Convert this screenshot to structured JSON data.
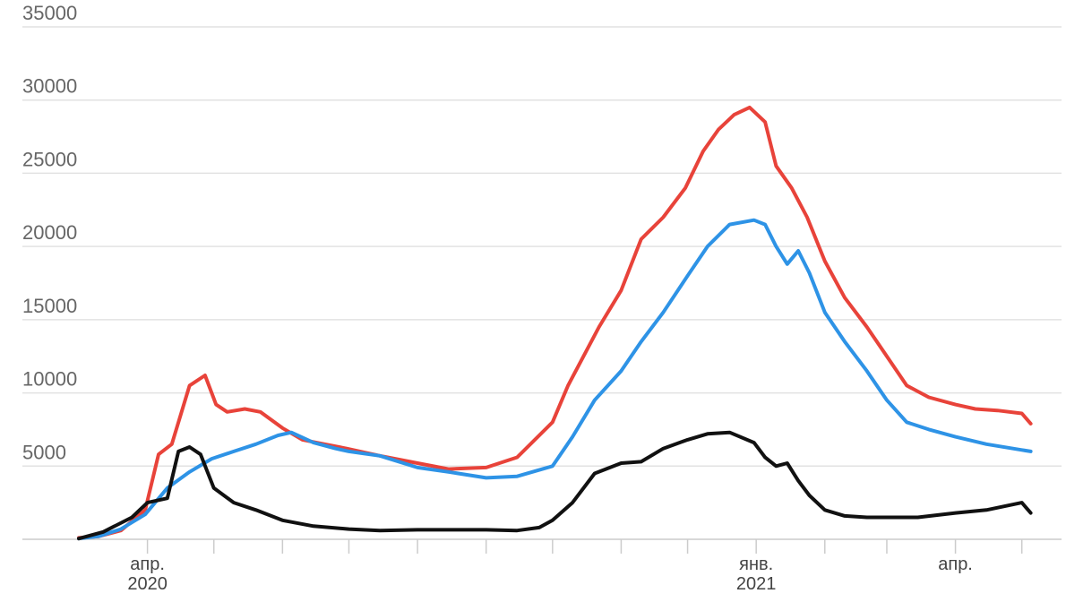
{
  "chart_data": {
    "type": "line",
    "title": "",
    "xlabel": "",
    "ylabel": "",
    "ylim": [
      0,
      35000
    ],
    "y_ticks": [
      "35000",
      "30000",
      "25000",
      "20000",
      "15000",
      "10000",
      "5000"
    ],
    "y_tick_values": [
      35000,
      30000,
      25000,
      20000,
      15000,
      10000,
      5000
    ],
    "x_tick_labels": [
      {
        "date": "2020-04-01",
        "line1": "апр.",
        "line2": "2020"
      },
      {
        "date": "2021-01-01",
        "line1": "янв.",
        "line2": "2021"
      },
      {
        "date": "2021-04-01",
        "line1": "апр.",
        "line2": ""
      }
    ],
    "x_minor_ticks": [
      "2020-05-01",
      "2020-06-01",
      "2020-07-01",
      "2020-08-01",
      "2020-09-01",
      "2020-10-01",
      "2020-11-01",
      "2020-12-01",
      "2021-02-01",
      "2021-03-01",
      "2021-05-01"
    ],
    "xlim": [
      "2020-03-01",
      "2021-05-08"
    ],
    "grid": true,
    "legend": "none",
    "series": [
      {
        "color": "#e8433a",
        "x": [
          "2020-03-01",
          "2020-03-10",
          "2020-03-20",
          "2020-03-31",
          "2020-04-06",
          "2020-04-12",
          "2020-04-20",
          "2020-04-27",
          "2020-05-02",
          "2020-05-07",
          "2020-05-15",
          "2020-05-22",
          "2020-06-01",
          "2020-06-10",
          "2020-06-20",
          "2020-06-30",
          "2020-07-15",
          "2020-08-01",
          "2020-08-15",
          "2020-09-01",
          "2020-09-15",
          "2020-10-01",
          "2020-10-08",
          "2020-10-15",
          "2020-10-22",
          "2020-11-01",
          "2020-11-10",
          "2020-11-20",
          "2020-11-30",
          "2020-12-08",
          "2020-12-15",
          "2020-12-22",
          "2020-12-29",
          "2021-01-05",
          "2021-01-10",
          "2021-01-17",
          "2021-01-24",
          "2021-02-01",
          "2021-02-10",
          "2021-02-20",
          "2021-03-01",
          "2021-03-10",
          "2021-03-20",
          "2021-04-01",
          "2021-04-10",
          "2021-04-20",
          "2021-05-01",
          "2021-05-05"
        ],
        "y": [
          100,
          200,
          600,
          2000,
          5800,
          6500,
          10500,
          11200,
          9200,
          8700,
          8900,
          8700,
          7600,
          6800,
          6500,
          6200,
          5700,
          5200,
          4800,
          4900,
          5600,
          8000,
          10500,
          12500,
          14500,
          17000,
          20500,
          22000,
          24000,
          26500,
          28000,
          29000,
          29500,
          28500,
          25500,
          24000,
          22000,
          19000,
          16500,
          14500,
          12500,
          10500,
          9700,
          9200,
          8900,
          8800,
          8600,
          7900
        ]
      },
      {
        "color": "#2e93e6",
        "x": [
          "2020-03-01",
          "2020-03-10",
          "2020-03-20",
          "2020-03-31",
          "2020-04-10",
          "2020-04-20",
          "2020-04-30",
          "2020-05-10",
          "2020-05-20",
          "2020-05-30",
          "2020-06-05",
          "2020-06-15",
          "2020-06-25",
          "2020-07-01",
          "2020-07-15",
          "2020-08-01",
          "2020-08-15",
          "2020-09-01",
          "2020-09-15",
          "2020-10-01",
          "2020-10-10",
          "2020-10-20",
          "2020-11-01",
          "2020-11-10",
          "2020-11-20",
          "2020-12-01",
          "2020-12-10",
          "2020-12-20",
          "2020-12-31",
          "2021-01-05",
          "2021-01-10",
          "2021-01-15",
          "2021-01-20",
          "2021-01-25",
          "2021-02-01",
          "2021-02-10",
          "2021-02-20",
          "2021-03-01",
          "2021-03-10",
          "2021-03-20",
          "2021-04-01",
          "2021-04-15",
          "2021-05-01",
          "2021-05-05"
        ],
        "y": [
          50,
          200,
          700,
          1700,
          3500,
          4600,
          5500,
          6000,
          6500,
          7100,
          7300,
          6600,
          6200,
          6000,
          5700,
          4900,
          4600,
          4200,
          4300,
          5000,
          7000,
          9500,
          11500,
          13500,
          15500,
          18000,
          20000,
          21500,
          21800,
          21500,
          20000,
          18800,
          19700,
          18200,
          15500,
          13500,
          11500,
          9500,
          8000,
          7500,
          7000,
          6500,
          6100,
          6000
        ]
      },
      {
        "color": "#111111",
        "x": [
          "2020-03-01",
          "2020-03-12",
          "2020-03-25",
          "2020-04-01",
          "2020-04-10",
          "2020-04-15",
          "2020-04-20",
          "2020-04-25",
          "2020-05-01",
          "2020-05-10",
          "2020-05-20",
          "2020-06-01",
          "2020-06-15",
          "2020-07-01",
          "2020-07-15",
          "2020-08-01",
          "2020-08-15",
          "2020-09-01",
          "2020-09-15",
          "2020-09-25",
          "2020-10-01",
          "2020-10-10",
          "2020-10-20",
          "2020-11-01",
          "2020-11-10",
          "2020-11-20",
          "2020-12-01",
          "2020-12-10",
          "2020-12-20",
          "2020-12-31",
          "2021-01-05",
          "2021-01-10",
          "2021-01-15",
          "2021-01-20",
          "2021-01-25",
          "2021-02-01",
          "2021-02-10",
          "2021-02-20",
          "2021-03-01",
          "2021-03-15",
          "2021-04-01",
          "2021-04-15",
          "2021-05-01",
          "2021-05-05"
        ],
        "y": [
          50,
          500,
          1500,
          2500,
          2800,
          6000,
          6300,
          5800,
          3500,
          2500,
          2000,
          1300,
          900,
          700,
          600,
          650,
          650,
          650,
          600,
          800,
          1300,
          2500,
          4500,
          5200,
          5300,
          6200,
          6800,
          7200,
          7300,
          6600,
          5600,
          5000,
          5200,
          4000,
          3000,
          2000,
          1600,
          1500,
          1500,
          1500,
          1800,
          2000,
          2500,
          1800
        ]
      }
    ]
  }
}
